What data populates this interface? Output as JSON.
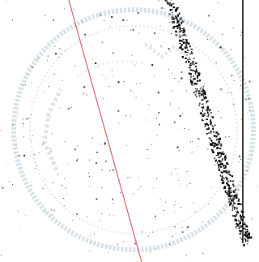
{
  "image": {
    "subject": "scanned-page-with-faint-circular-stamp",
    "stamp_letters": "",
    "colors": {
      "paper": "#ffffff",
      "speckle": "#1a1a1a",
      "stamp": "#b8c9d6",
      "red_rule": "#c8323c",
      "margin_line": "#111111"
    }
  }
}
